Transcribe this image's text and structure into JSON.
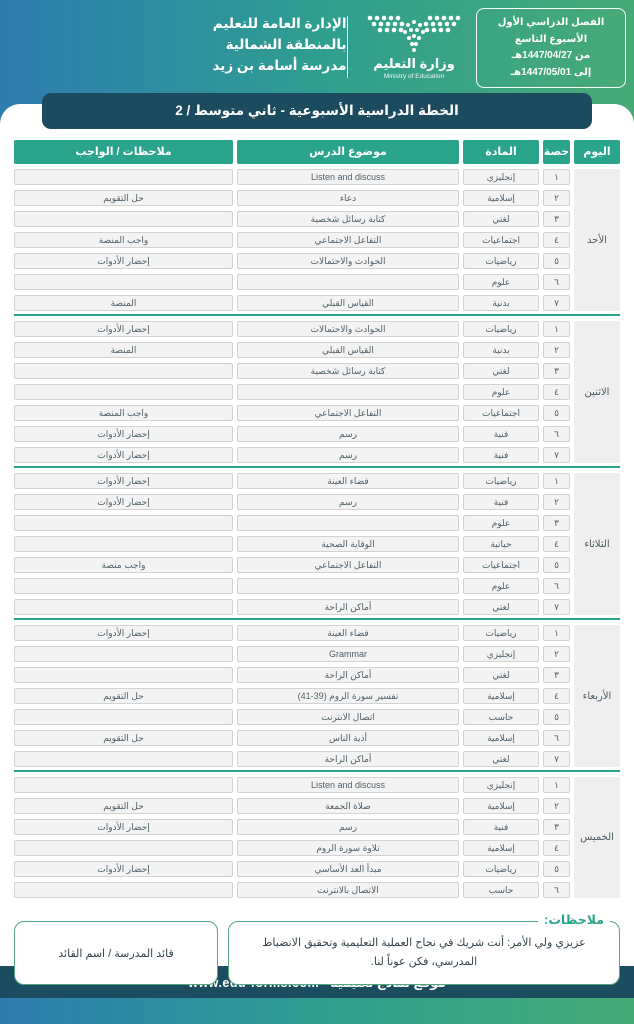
{
  "header": {
    "semester_box": {
      "line1": "الفصل الدراسي الأول",
      "line2": "الأسبوع التاسع",
      "line3": "من 1447/04/27هـ",
      "line4": "إلى 1447/05/01هـ"
    },
    "ministry": {
      "name_ar": "وزارة التعليم",
      "name_en": "Ministry of Education"
    },
    "school_info": {
      "line1": "الإدارة العامة للتعليم",
      "line2": "بالمنطقة الشمالية",
      "line3": "مدرسة أسامة بن زيد"
    }
  },
  "title": "الخطة الدراسية الأسبوعية - ثاني متوسط / 2",
  "table": {
    "headers": {
      "day": "اليوم",
      "period": "حصة",
      "subject": "المادة",
      "topic": "موضوع الدرس",
      "notes": "ملاحظات / الواجب"
    },
    "days": [
      {
        "name": "الأحد",
        "rows": [
          {
            "period": "١",
            "subject": "إنجليزي",
            "topic": "Listen and discuss",
            "notes": ""
          },
          {
            "period": "٢",
            "subject": "إسلامية",
            "topic": "دعاء",
            "notes": "حل التقويم"
          },
          {
            "period": "٣",
            "subject": "لغتي",
            "topic": "كتابة رسائل شخصية",
            "notes": ""
          },
          {
            "period": "٤",
            "subject": "اجتماعيات",
            "topic": "التفاعل الاجتماعي",
            "notes": "واجب المنصة"
          },
          {
            "period": "٥",
            "subject": "رياضيات",
            "topic": "الحوادث والاحتمالات",
            "notes": "إحضار الأدوات"
          },
          {
            "period": "٦",
            "subject": "علوم",
            "topic": "",
            "notes": ""
          },
          {
            "period": "٧",
            "subject": "بدنية",
            "topic": "القياس القبلي",
            "notes": "المنصة"
          }
        ]
      },
      {
        "name": "الاثنين",
        "rows": [
          {
            "period": "١",
            "subject": "رياضيات",
            "topic": "الحوادث والاحتمالات",
            "notes": "إحضار الأدوات"
          },
          {
            "period": "٢",
            "subject": "بدنية",
            "topic": "القياس القبلي",
            "notes": "المنصة"
          },
          {
            "period": "٣",
            "subject": "لغتي",
            "topic": "كتابة رسائل شخصية",
            "notes": ""
          },
          {
            "period": "٤",
            "subject": "علوم",
            "topic": "",
            "notes": ""
          },
          {
            "period": "٥",
            "subject": "اجتماعيات",
            "topic": "التفاعل الاجتماعي",
            "notes": "واجب المنصة"
          },
          {
            "period": "٦",
            "subject": "فنية",
            "topic": "رسم",
            "notes": "إحضار الأدوات"
          },
          {
            "period": "٧",
            "subject": "فنية",
            "topic": "رسم",
            "notes": "إحضار الأدوات"
          }
        ]
      },
      {
        "name": "الثلاثاء",
        "rows": [
          {
            "period": "١",
            "subject": "رياضيات",
            "topic": "فضاء العينة",
            "notes": "إحضار الأدوات"
          },
          {
            "period": "٢",
            "subject": "فنية",
            "topic": "رسم",
            "notes": "إحضار الأدوات"
          },
          {
            "period": "٣",
            "subject": "علوم",
            "topic": "",
            "notes": ""
          },
          {
            "period": "٤",
            "subject": "حياتية",
            "topic": "الوقاية الصحية",
            "notes": ""
          },
          {
            "period": "٥",
            "subject": "اجتماعيات",
            "topic": "التفاعل الاجتماعي",
            "notes": "واجب منصة"
          },
          {
            "period": "٦",
            "subject": "علوم",
            "topic": "",
            "notes": ""
          },
          {
            "period": "٧",
            "subject": "لغتي",
            "topic": "أماكن الراحة",
            "notes": ""
          }
        ]
      },
      {
        "name": "الأربعاء",
        "rows": [
          {
            "period": "١",
            "subject": "رياضيات",
            "topic": "فضاء العينة",
            "notes": "إحضار الأدوات"
          },
          {
            "period": "٢",
            "subject": "إنجليزي",
            "topic": "Grammar",
            "notes": ""
          },
          {
            "period": "٣",
            "subject": "لغتي",
            "topic": "أماكن الراحة",
            "notes": ""
          },
          {
            "period": "٤",
            "subject": "إسلامية",
            "topic": "تفسير سورة الروم (39-41)",
            "notes": "حل التقويم"
          },
          {
            "period": "٥",
            "subject": "حاسب",
            "topic": "اتصال الانترنت",
            "notes": ""
          },
          {
            "period": "٦",
            "subject": "إسلامية",
            "topic": "أذية الناس",
            "notes": "حل التقويم"
          },
          {
            "period": "٧",
            "subject": "لغتي",
            "topic": "أماكن الراحة",
            "notes": ""
          }
        ]
      },
      {
        "name": "الخميس",
        "rows": [
          {
            "period": "١",
            "subject": "إنجليزي",
            "topic": "Listen and discuss",
            "notes": ""
          },
          {
            "period": "٢",
            "subject": "إسلامية",
            "topic": "صلاة الجمعة",
            "notes": "حل التقويم"
          },
          {
            "period": "٣",
            "subject": "فنية",
            "topic": "رسم",
            "notes": "إحضار الأدوات"
          },
          {
            "period": "٤",
            "subject": "إسلامية",
            "topic": "تلاوة سورة الروم",
            "notes": ""
          },
          {
            "period": "٥",
            "subject": "رياضيات",
            "topic": "مبدأ العد الأساسي",
            "notes": "إحضار الأدوات"
          },
          {
            "period": "٦",
            "subject": "حاسب",
            "topic": "الاتصال بالانترنت",
            "notes": ""
          }
        ]
      }
    ]
  },
  "notes_section": {
    "label": "ملاحظات:",
    "message": "عزيزي ولي الأمر: أنت شريك في نجاح العملية التعليمية وتحقيق الانضباط المدرسي، فكن عوناً لنا.",
    "leader": "قائد المدرسة / اسم القائد"
  },
  "footer_bar": "موقع نماذج تعليمية - www.edu-forms.com",
  "colors": {
    "accent_teal": "#2aa48c",
    "title_dark_teal": "#1c4a5e",
    "footer_dark_teal": "#1b4c5f",
    "gradient_blue": "#2d7cb0",
    "gradient_green": "#47aa76",
    "notes_border_green": "#53a87e",
    "cell_fill": "#f3f3f3",
    "day_cell_fill": "#efefef"
  }
}
